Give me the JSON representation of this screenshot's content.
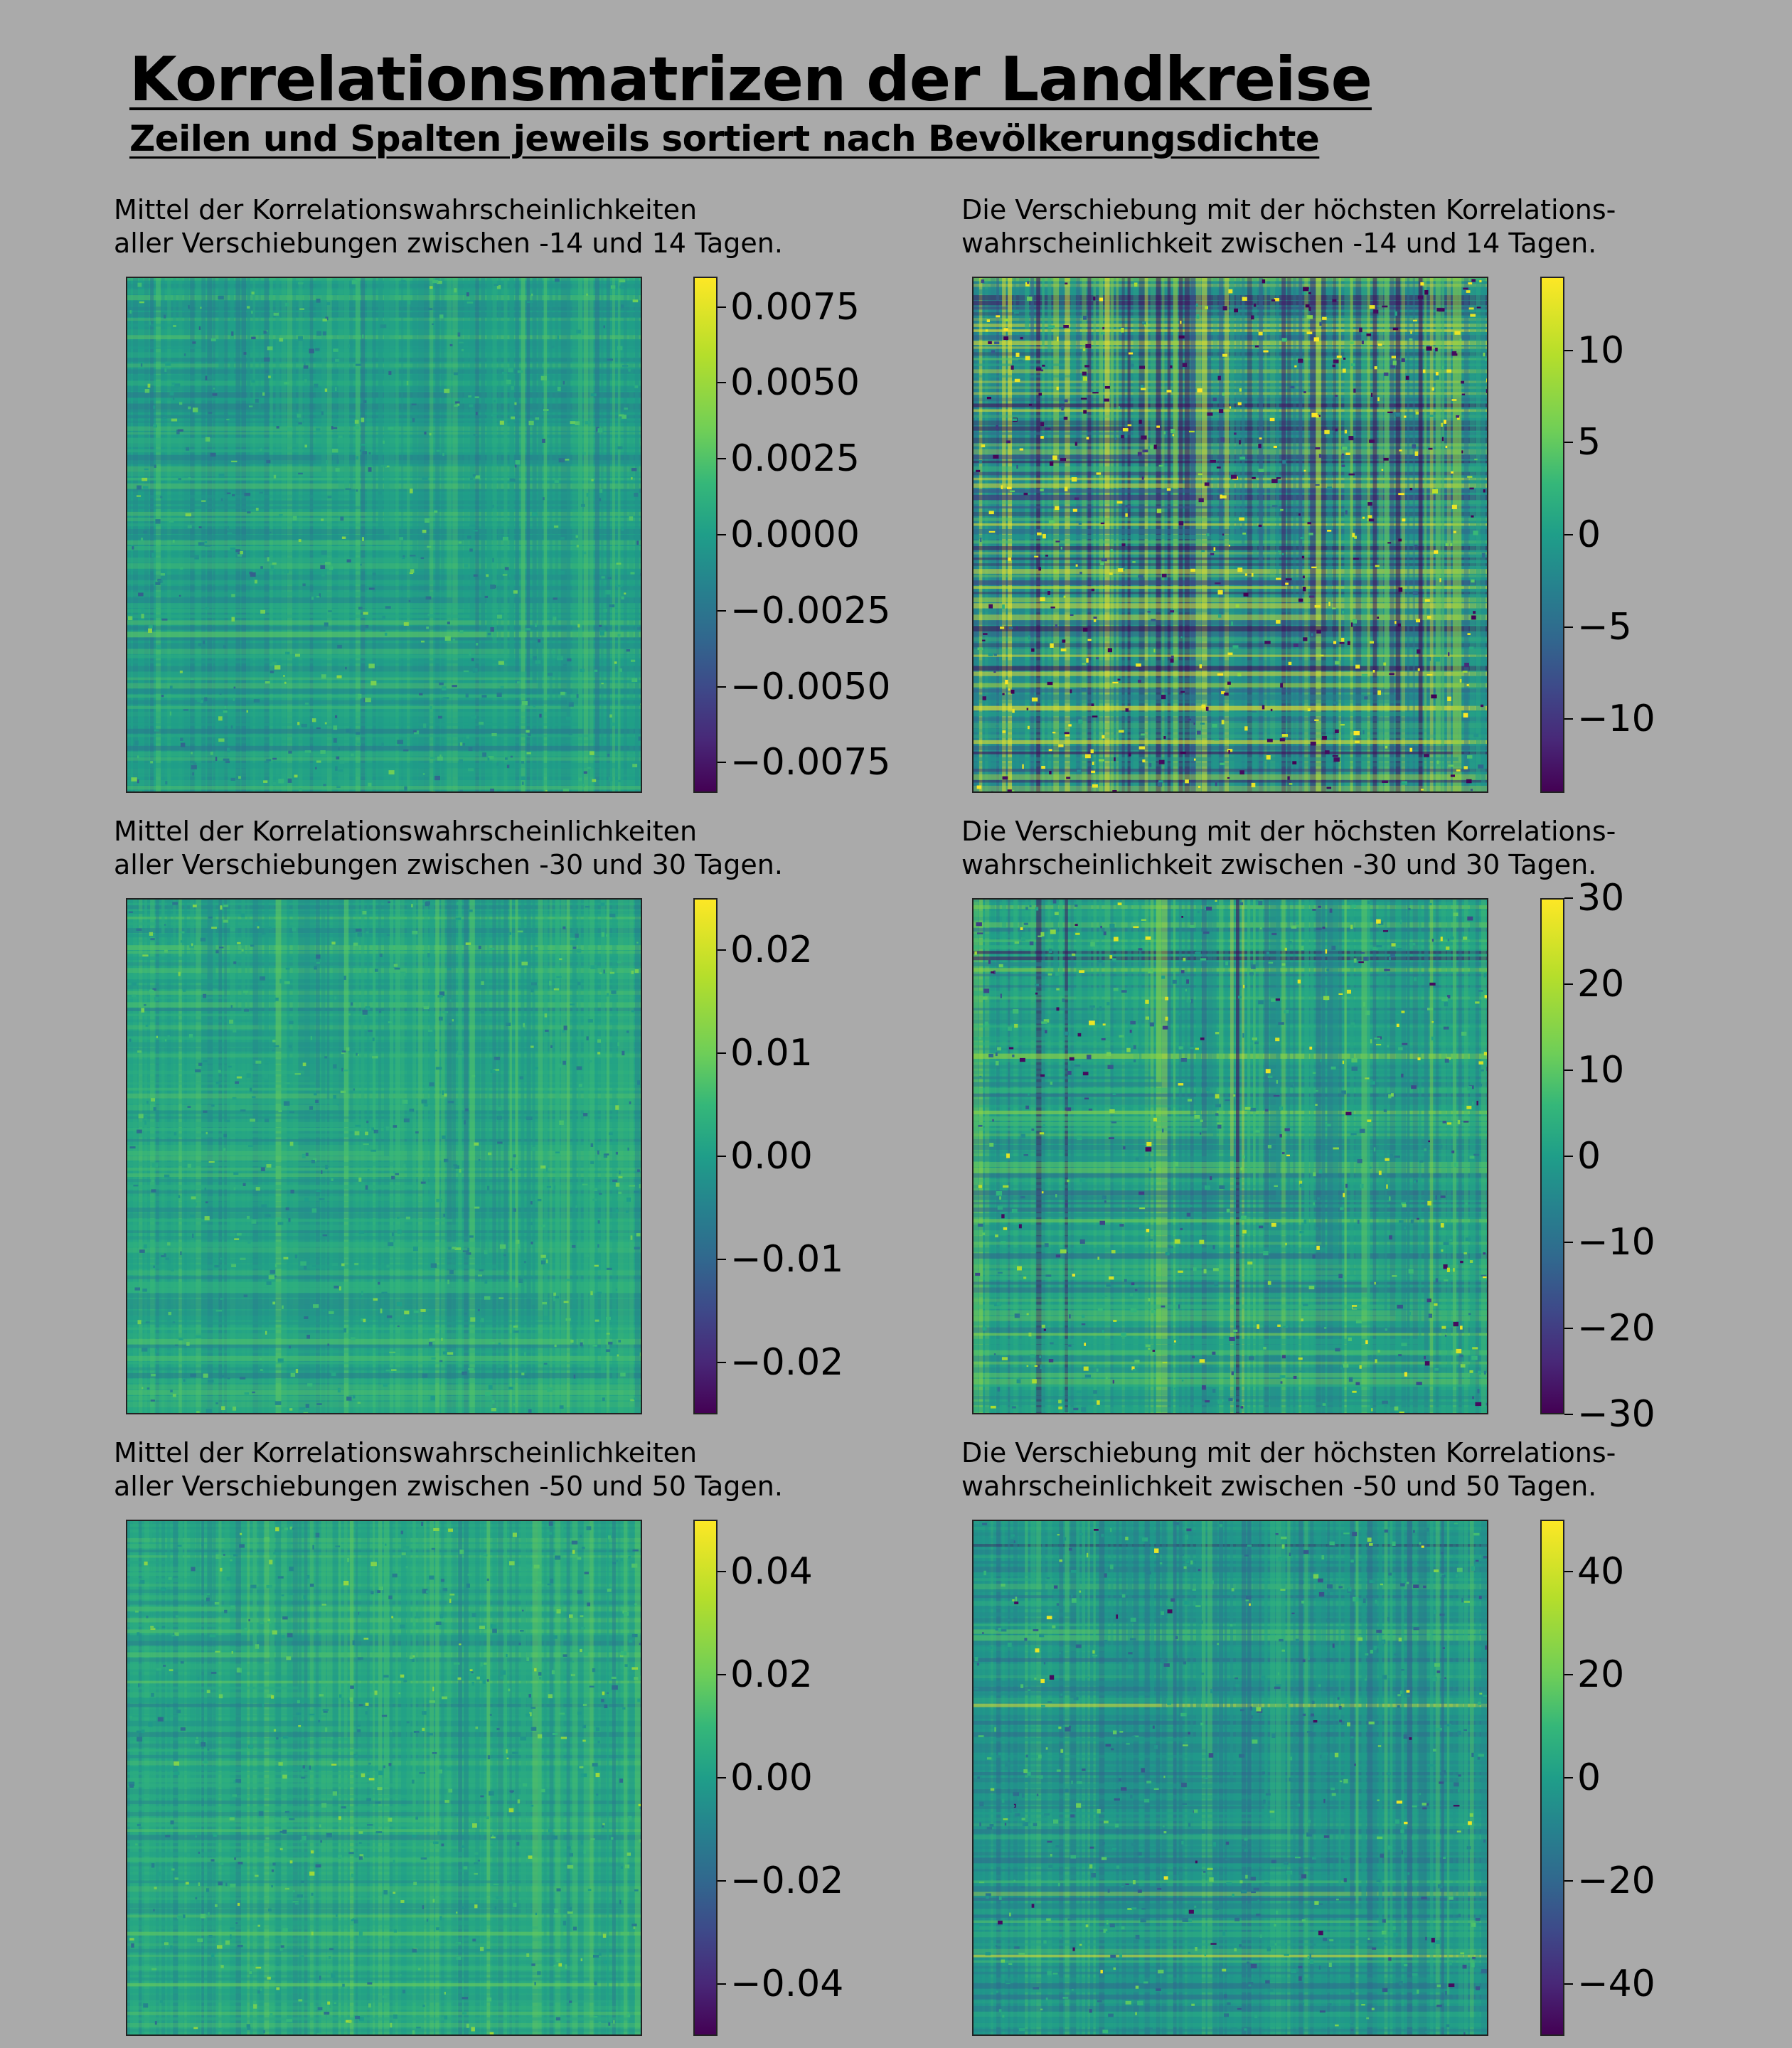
{
  "figure": {
    "title": "Korrelationsmatrizen der Landkreise",
    "subtitle": "Zeilen und Spalten jeweils sortiert nach Bevölkerungsdichte"
  },
  "colormap": {
    "name": "viridis",
    "colors": [
      "#440154",
      "#482878",
      "#3e4989",
      "#31688e",
      "#26828e",
      "#1f9e89",
      "#35b779",
      "#6ece58",
      "#b5de2b",
      "#fde725"
    ]
  },
  "chart_data": [
    {
      "type": "heatmap",
      "title": [
        "Mittel der Korrelationswahrscheinlichkeiten",
        "aller Verschiebungen zwischen -14 und 14 Tagen."
      ],
      "colorbar_range": [
        -0.0085,
        0.0085
      ],
      "colorbar_ticks": [
        -0.0075,
        -0.005,
        -0.0025,
        0.0,
        0.0025,
        0.005,
        0.0075
      ],
      "colorbar_tick_labels": [
        "−0.0075",
        "−0.0050",
        "−0.0025",
        "0.0000",
        "0.0025",
        "0.0050",
        "0.0075"
      ],
      "axes_visible": false
    },
    {
      "type": "heatmap",
      "title": [
        "Die Verschiebung mit der höchsten Korrelations-",
        "wahrscheinlichkeit zwischen -14 und 14 Tagen."
      ],
      "colorbar_range": [
        -14,
        14
      ],
      "colorbar_ticks": [
        -10,
        -5,
        0,
        5,
        10
      ],
      "colorbar_tick_labels": [
        "−10",
        "−5",
        "0",
        "5",
        "10"
      ],
      "axes_visible": false
    },
    {
      "type": "heatmap",
      "title": [
        "Mittel der Korrelationswahrscheinlichkeiten",
        "aller Verschiebungen zwischen -30 und 30 Tagen."
      ],
      "colorbar_range": [
        -0.025,
        0.025
      ],
      "colorbar_ticks": [
        -0.02,
        -0.01,
        0.0,
        0.01,
        0.02
      ],
      "colorbar_tick_labels": [
        "−0.02",
        "−0.01",
        "0.00",
        "0.01",
        "0.02"
      ],
      "axes_visible": false
    },
    {
      "type": "heatmap",
      "title": [
        "Die Verschiebung mit der höchsten Korrelations-",
        "wahrscheinlichkeit zwischen -30 und 30 Tagen."
      ],
      "colorbar_range": [
        -30,
        30
      ],
      "colorbar_ticks": [
        -30,
        -20,
        -10,
        0,
        10,
        20,
        30
      ],
      "colorbar_tick_labels": [
        "−30",
        "−20",
        "−10",
        "0",
        "10",
        "20",
        "30"
      ],
      "axes_visible": false
    },
    {
      "type": "heatmap",
      "title": [
        "Mittel der Korrelationswahrscheinlichkeiten",
        "aller Verschiebungen zwischen -50 und 50 Tagen."
      ],
      "colorbar_range": [
        -0.05,
        0.05
      ],
      "colorbar_ticks": [
        -0.04,
        -0.02,
        0.0,
        0.02,
        0.04
      ],
      "colorbar_tick_labels": [
        "−0.04",
        "−0.02",
        "0.00",
        "0.02",
        "0.04"
      ],
      "axes_visible": false
    },
    {
      "type": "heatmap",
      "title": [
        "Die Verschiebung mit der höchsten Korrelations-",
        "wahrscheinlichkeit zwischen -50 und 50 Tagen."
      ],
      "colorbar_range": [
        -50,
        50
      ],
      "colorbar_ticks": [
        -40,
        -20,
        0,
        20,
        40
      ],
      "colorbar_tick_labels": [
        "−40",
        "−20",
        "0",
        "20",
        "40"
      ],
      "axes_visible": false
    }
  ]
}
